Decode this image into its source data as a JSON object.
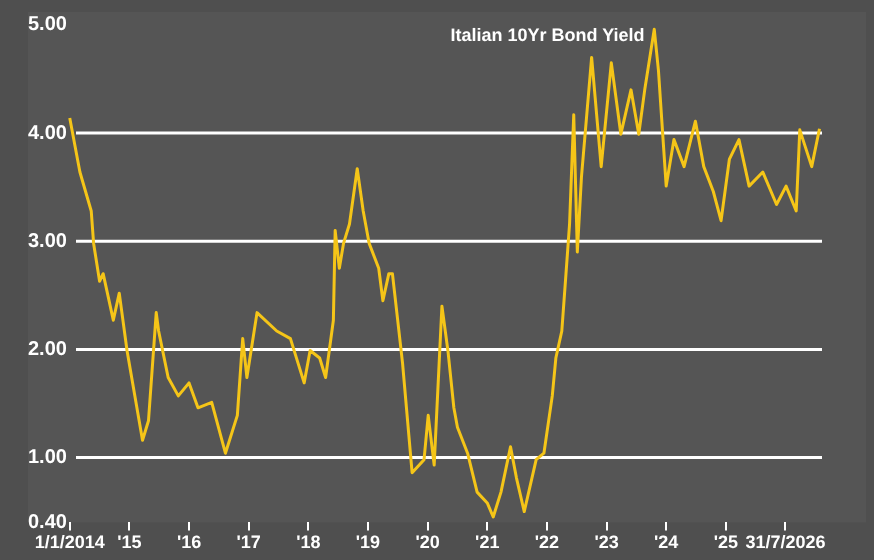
{
  "chart_data": {
    "type": "line",
    "title": "Italian 10Yr Bond Yield",
    "x": [
      2014.0,
      2014.17,
      2014.36,
      2014.4,
      2014.5,
      2014.56,
      2014.73,
      2014.83,
      2014.96,
      2015.22,
      2015.32,
      2015.45,
      2015.49,
      2015.65,
      2015.82,
      2016.0,
      2016.15,
      2016.38,
      2016.61,
      2016.81,
      2016.9,
      2016.97,
      2017.14,
      2017.47,
      2017.7,
      2017.93,
      2018.03,
      2018.19,
      2018.29,
      2018.42,
      2018.45,
      2018.52,
      2018.59,
      2018.69,
      2018.82,
      2018.92,
      2019.02,
      2019.18,
      2019.25,
      2019.35,
      2019.41,
      2019.58,
      2019.74,
      2019.94,
      2020.01,
      2020.11,
      2020.24,
      2020.34,
      2020.44,
      2020.5,
      2020.67,
      2020.83,
      2021.0,
      2021.1,
      2021.23,
      2021.39,
      2021.49,
      2021.62,
      2021.82,
      2021.95,
      2022.09,
      2022.15,
      2022.25,
      2022.32,
      2022.38,
      2022.45,
      2022.51,
      2022.58,
      2022.75,
      2022.91,
      2023.08,
      2023.24,
      2023.41,
      2023.54,
      2023.64,
      2023.8,
      2023.87,
      2024.0,
      2024.13,
      2024.3,
      2024.49,
      2024.63,
      2024.79,
      2024.92,
      2025.06,
      2025.22,
      2025.39,
      2025.62,
      2025.85,
      2026.01,
      2026.18,
      2026.24,
      2026.44,
      2026.57
    ],
    "series": [
      {
        "color": "#f5c518",
        "values": [
          4.14,
          3.64,
          3.28,
          2.98,
          2.63,
          2.7,
          2.27,
          2.52,
          1.99,
          1.16,
          1.34,
          2.34,
          2.17,
          1.74,
          1.57,
          1.69,
          1.46,
          1.51,
          1.04,
          1.39,
          2.1,
          1.74,
          2.34,
          2.17,
          2.1,
          1.69,
          1.99,
          1.92,
          1.74,
          2.27,
          3.1,
          2.75,
          2.98,
          3.16,
          3.67,
          3.28,
          2.98,
          2.75,
          2.45,
          2.7,
          2.7,
          1.87,
          0.86,
          0.98,
          1.39,
          0.93,
          2.4,
          1.99,
          1.46,
          1.28,
          1.04,
          0.68,
          0.58,
          0.45,
          0.68,
          1.1,
          0.81,
          0.5,
          0.98,
          1.04,
          1.57,
          1.92,
          2.17,
          2.7,
          3.16,
          4.17,
          2.9,
          3.6,
          4.7,
          3.69,
          4.65,
          3.99,
          4.4,
          3.99,
          4.4,
          4.96,
          4.58,
          3.51,
          3.94,
          3.69,
          4.11,
          3.69,
          3.46,
          3.19,
          3.76,
          3.94,
          3.51,
          3.64,
          3.34,
          3.51,
          3.28,
          4.03,
          3.69,
          4.04
        ]
      }
    ],
    "xlim": [
      2013.3,
      2027.35
    ],
    "xticks": [
      {
        "value": 2014,
        "label": "1/1/2014"
      },
      {
        "value": 2015,
        "label": "'15"
      },
      {
        "value": 2016,
        "label": "'16"
      },
      {
        "value": 2017,
        "label": "'17"
      },
      {
        "value": 2018,
        "label": "'18"
      },
      {
        "value": 2019,
        "label": "'19"
      },
      {
        "value": 2020,
        "label": "'20"
      },
      {
        "value": 2021,
        "label": "'21"
      },
      {
        "value": 2022,
        "label": "'22"
      },
      {
        "value": 2023,
        "label": "'23"
      },
      {
        "value": 2024,
        "label": "'24"
      },
      {
        "value": 2025,
        "label": "'25"
      },
      {
        "value": 2026,
        "label": "31/7/2026"
      }
    ],
    "ylim": [
      0.4,
      5.12
    ],
    "yticks": [
      {
        "value": 0.4,
        "label": "0.40"
      },
      {
        "value": 1,
        "label": "1.00"
      },
      {
        "value": 2,
        "label": "2.00"
      },
      {
        "value": 3,
        "label": "3.00"
      },
      {
        "value": 4,
        "label": "4.00"
      },
      {
        "value": 5,
        "label": "5.00"
      }
    ],
    "grid": "y",
    "marker": "none",
    "line_style": "solid"
  }
}
